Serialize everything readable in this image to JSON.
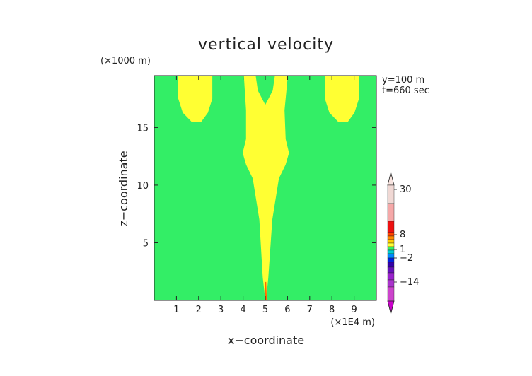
{
  "chart_data": {
    "type": "heatmap",
    "title": "vertical velocity",
    "xlabel": "x−coordinate",
    "ylabel": "z−coordinate",
    "x_unit": "(×1E4 m)",
    "y_unit": "(×1000 m)",
    "info": [
      "y=100 m",
      "t=660 sec"
    ],
    "xlim": [
      0,
      10
    ],
    "ylim": [
      0,
      19.5
    ],
    "x_ticks": [
      "1",
      "2",
      "3",
      "4",
      "5",
      "6",
      "7",
      "8",
      "9"
    ],
    "y_ticks": [
      "5",
      "10",
      "15"
    ],
    "background_level": "0 to 1",
    "regions": [
      {
        "name": "left-upper-plume",
        "level": "1 to 2",
        "outline": [
          [
            1.1,
            19.5
          ],
          [
            1.1,
            17.5
          ],
          [
            1.3,
            16.3
          ],
          [
            1.7,
            15.5
          ],
          [
            2.1,
            15.5
          ],
          [
            2.4,
            16.3
          ],
          [
            2.6,
            17.5
          ],
          [
            2.6,
            19.5
          ]
        ]
      },
      {
        "name": "right-upper-plume",
        "level": "1 to 2",
        "outline": [
          [
            7.7,
            19.5
          ],
          [
            7.7,
            17.5
          ],
          [
            7.9,
            16.3
          ],
          [
            8.3,
            15.5
          ],
          [
            8.7,
            15.5
          ],
          [
            9.0,
            16.3
          ],
          [
            9.2,
            17.5
          ],
          [
            9.2,
            19.5
          ]
        ]
      },
      {
        "name": "central-updraft",
        "level": "1 to 2",
        "outline": [
          [
            4.05,
            19.5
          ],
          [
            4.15,
            16.5
          ],
          [
            4.15,
            14.0
          ],
          [
            4.0,
            12.8
          ],
          [
            4.15,
            11.8
          ],
          [
            4.45,
            10.6
          ],
          [
            4.75,
            7.0
          ],
          [
            4.9,
            2.0
          ],
          [
            5.02,
            0.0
          ],
          [
            5.12,
            2.0
          ],
          [
            5.3,
            7.0
          ],
          [
            5.6,
            10.6
          ],
          [
            5.9,
            11.8
          ],
          [
            6.05,
            12.8
          ],
          [
            5.9,
            14.0
          ],
          [
            5.85,
            16.5
          ],
          [
            6.0,
            19.5
          ],
          [
            5.45,
            19.5
          ],
          [
            5.35,
            18.2
          ],
          [
            5.0,
            16.9
          ],
          [
            4.65,
            18.2
          ],
          [
            4.55,
            19.5
          ]
        ]
      }
    ],
    "colorbar": {
      "labels": [
        "30",
        "8",
        "1",
        "−2",
        "−14"
      ],
      "bins": [
        "#f0d8d4",
        "#f5a8a8",
        "#ee1111",
        "#ff4400",
        "#ff8800",
        "#ffcc00",
        "#ffff33",
        "#33ee66",
        "#00cccc",
        "#0088ff",
        "#0022dd",
        "#3300aa",
        "#6611bb",
        "#9922cc",
        "#aa33cc",
        "#cc44cc"
      ],
      "top_color": "#f8e4e0",
      "bottom_color": "#cc00cc"
    },
    "colors": {
      "background_field": "#33ee66",
      "updraft": "#ffff33",
      "core": "#ff6a00"
    }
  }
}
